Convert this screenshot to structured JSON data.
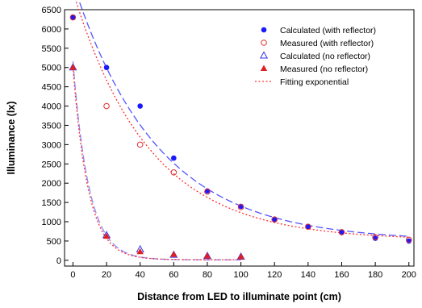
{
  "chart_data": {
    "type": "scatter",
    "xlabel": "Distance from LED to illuminate point (cm)",
    "ylabel": "Illuminance (lx)",
    "xlim": [
      -5,
      203
    ],
    "ylim": [
      -150,
      6500
    ],
    "xticks": [
      0,
      20,
      40,
      60,
      80,
      100,
      120,
      140,
      160,
      180,
      200
    ],
    "yticks": [
      0,
      500,
      1000,
      1500,
      2000,
      2500,
      3000,
      3500,
      4000,
      4500,
      5000,
      5500,
      6000,
      6500
    ],
    "grid": false,
    "legend_position": "top-right",
    "series": [
      {
        "name": "Calculated (with reflector)",
        "marker": "filled-circle",
        "color": "#1a1aff",
        "x": [
          0,
          20,
          40,
          60,
          80,
          100,
          120,
          140,
          160,
          180,
          200
        ],
        "y": [
          6300,
          5000,
          4000,
          2650,
          1800,
          1400,
          1050,
          870,
          720,
          570,
          500
        ]
      },
      {
        "name": "Measured (with reflector)",
        "marker": "open-circle",
        "color": "#e03030",
        "x": [
          0,
          20,
          40,
          60,
          80,
          100,
          120,
          140,
          160,
          180,
          200
        ],
        "y": [
          6300,
          4000,
          3000,
          2280,
          1780,
          1380,
          1060,
          870,
          730,
          600,
          530
        ]
      },
      {
        "name": "Calculated (no reflector)",
        "marker": "open-triangle",
        "color": "#3333ee",
        "x": [
          0,
          20,
          40,
          60,
          80,
          100
        ],
        "y": [
          5000,
          650,
          280,
          140,
          110,
          90
        ]
      },
      {
        "name": "Measured (no reflector)",
        "marker": "filled-triangle",
        "color": "#e02020",
        "x": [
          0,
          20,
          40,
          60,
          80,
          100
        ],
        "y": [
          5000,
          620,
          220,
          150,
          110,
          90
        ]
      },
      {
        "name": "Fitting exponential",
        "marker": "none",
        "line": "dotted",
        "color": "#ff3030",
        "fit_curves": [
          {
            "a": 6450,
            "b": 0.022,
            "c": 520,
            "x_range": [
              0,
              200
            ]
          },
          {
            "a": 5000,
            "b": 0.11,
            "c": 15,
            "x_range": [
              0,
              100
            ]
          }
        ]
      }
    ],
    "dashed_curves": [
      {
        "color": "#5555ff",
        "a": 6700,
        "b": 0.02,
        "c": 500,
        "x_range": [
          0,
          200
        ]
      },
      {
        "color": "#8888ff",
        "a": 5150,
        "b": 0.105,
        "c": 10,
        "x_range": [
          0,
          100
        ]
      }
    ]
  }
}
